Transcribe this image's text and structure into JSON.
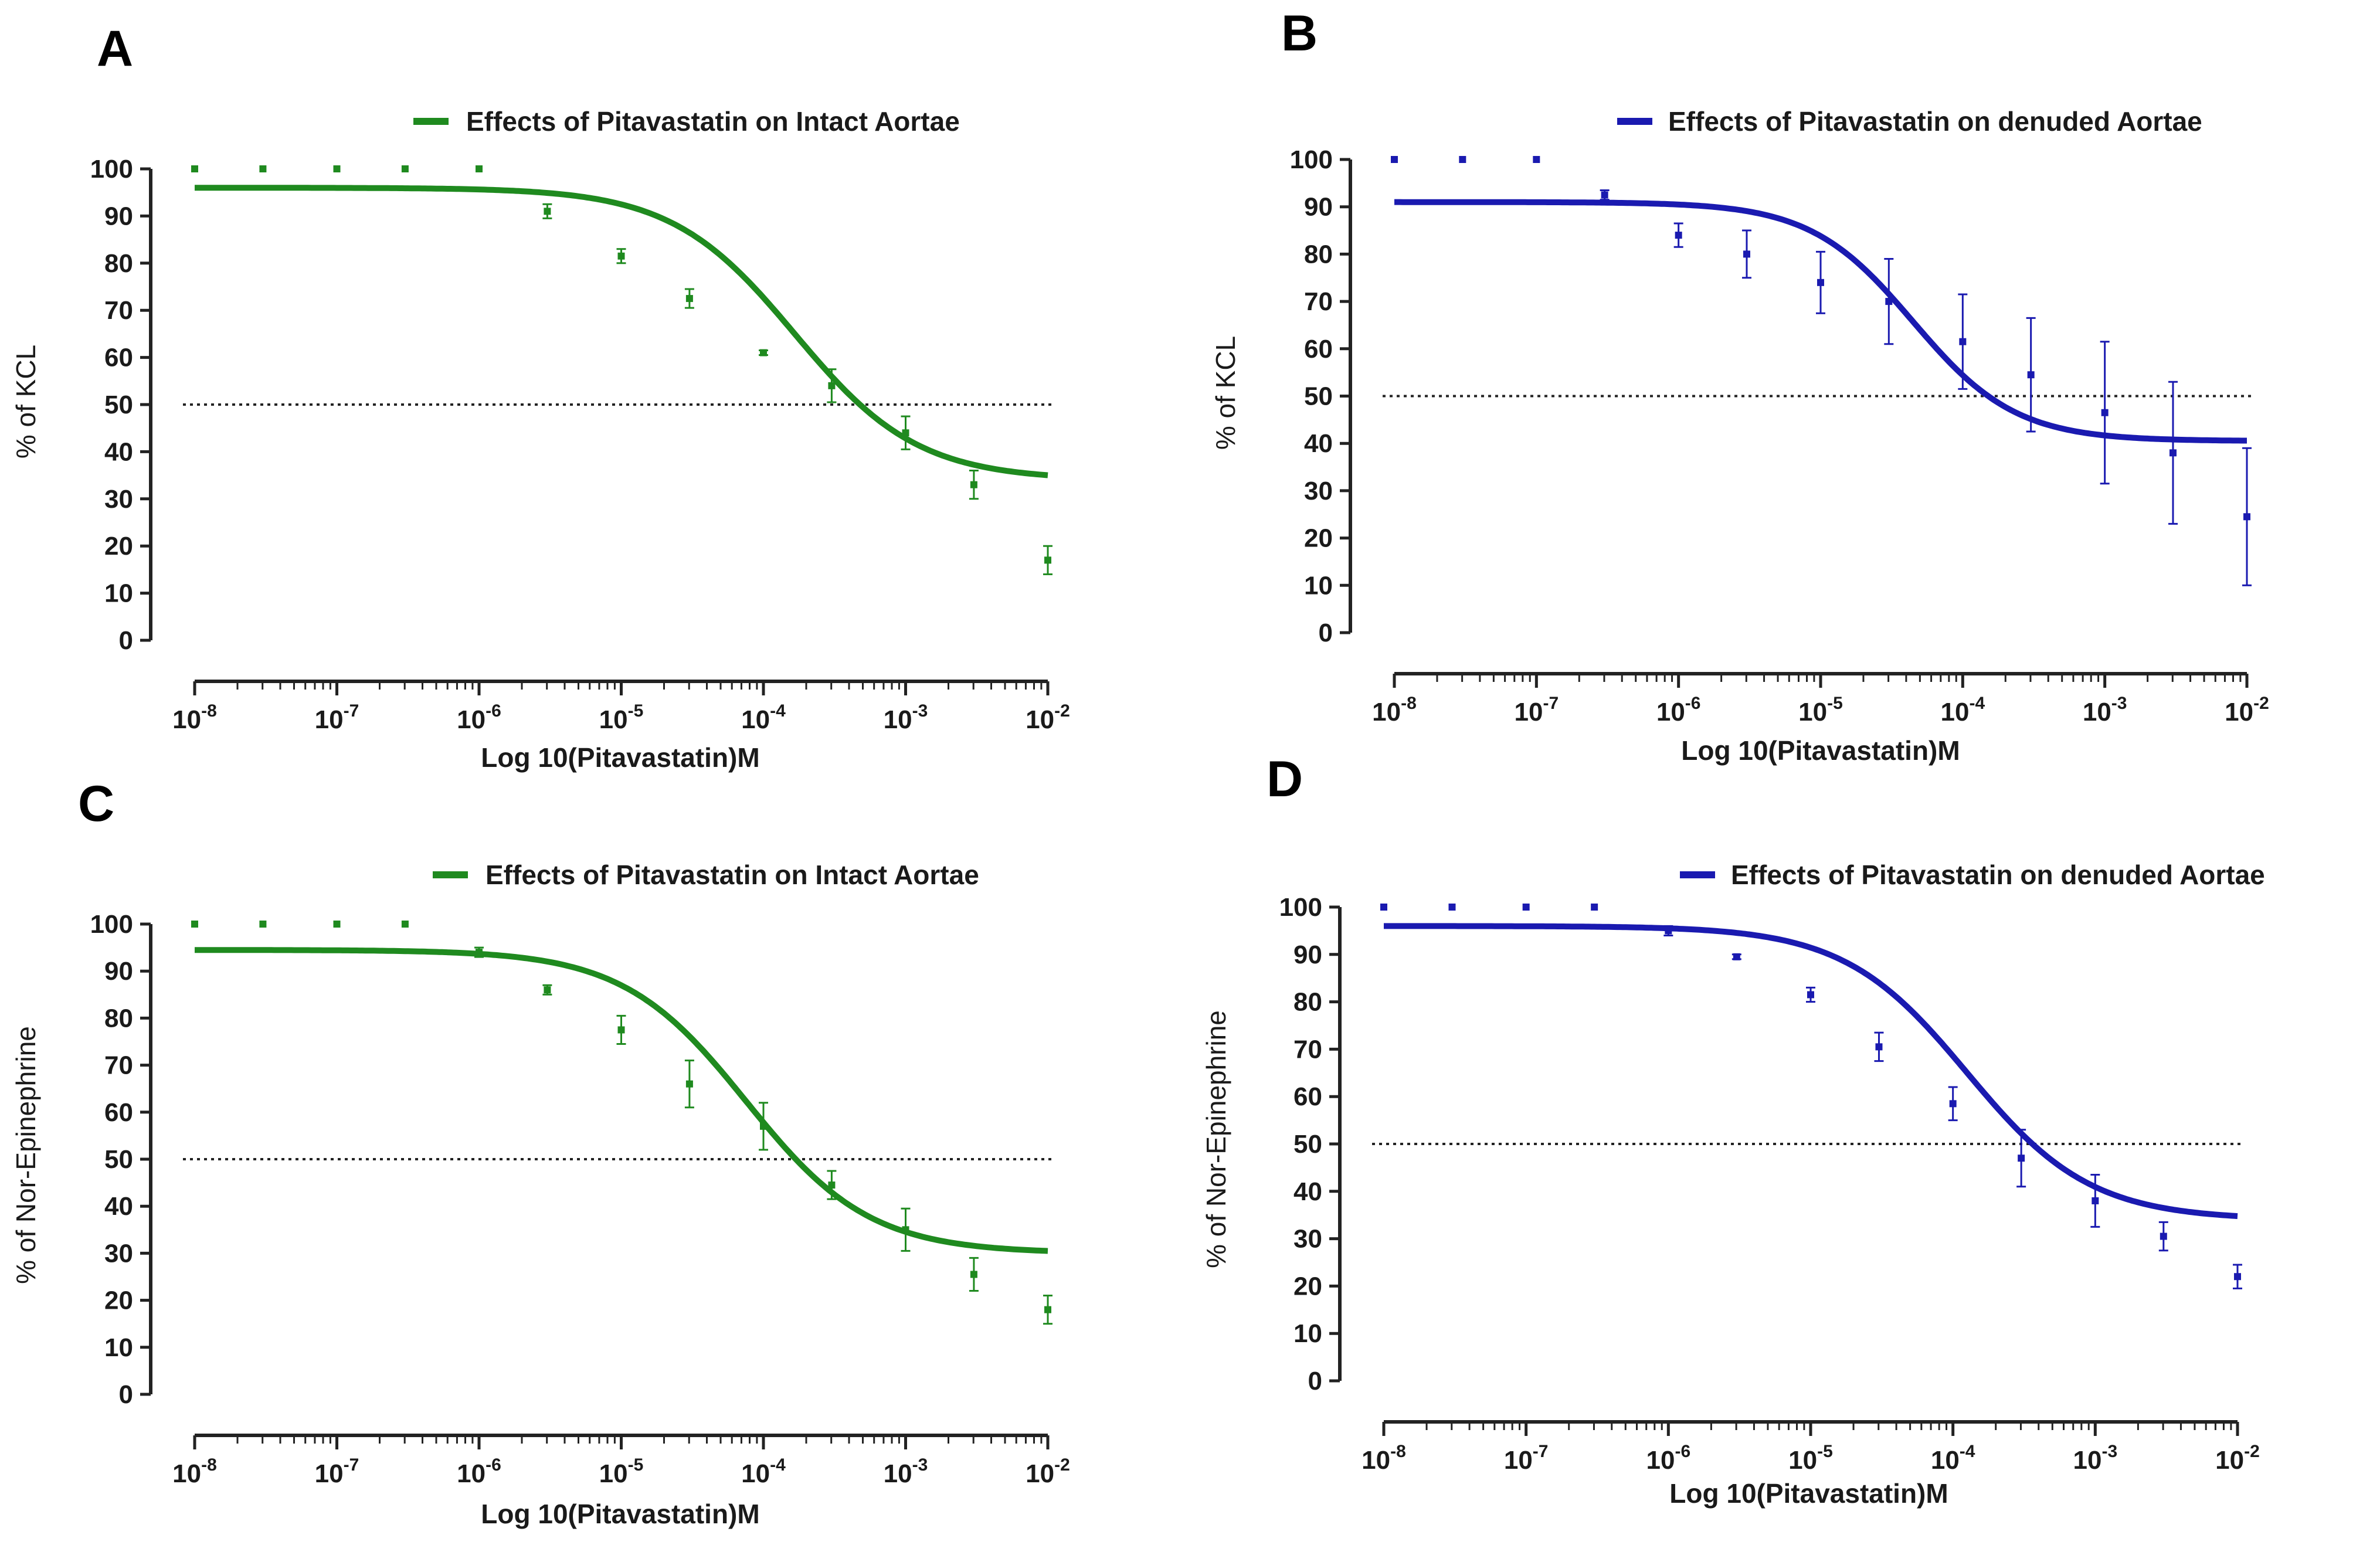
{
  "chart_data": [
    {
      "panel": "A",
      "type": "line",
      "legend": "Effects of Pitavastatin on Intact Aortae",
      "legend_position": "top-right",
      "xlabel": "Log 10(Pitavastatin)M",
      "ylabel": "% of KCL",
      "xscale": "log10",
      "xlim": [
        -8,
        -2
      ],
      "ylim": [
        0,
        100
      ],
      "yticks": [
        0,
        10,
        20,
        30,
        40,
        50,
        60,
        70,
        80,
        90,
        100
      ],
      "xtick_labels": [
        {
          "base": "10",
          "exp": "-8"
        },
        {
          "base": "10",
          "exp": "-7"
        },
        {
          "base": "10",
          "exp": "-6"
        },
        {
          "base": "10",
          "exp": "-5"
        },
        {
          "base": "10",
          "exp": "-4"
        },
        {
          "base": "10",
          "exp": "-3"
        },
        {
          "base": "10",
          "exp": "-2"
        }
      ],
      "reference_line_y": 50,
      "color": "#1f8a1f",
      "fit": {
        "top": 96,
        "bottom": 34,
        "log_ic50": -3.78,
        "hill": 1.0
      },
      "points": {
        "log_x": [
          -8,
          -7.52,
          -7,
          -6.52,
          -6,
          -5.52,
          -5,
          -4.52,
          -4,
          -3.52,
          -3,
          -2.52,
          -2
        ],
        "y": [
          100,
          100,
          100,
          100,
          100,
          91,
          81.5,
          72.5,
          61,
          54,
          44,
          33,
          17
        ],
        "err": [
          0,
          0,
          0,
          0,
          0,
          1.5,
          1.5,
          2,
          0.5,
          3.5,
          3.5,
          3,
          3
        ]
      }
    },
    {
      "panel": "B",
      "type": "line",
      "legend": "Effects of Pitavastatin on denuded Aortae",
      "legend_position": "top-right",
      "xlabel": "Log 10(Pitavastatin)M",
      "ylabel": "% of KCL",
      "xscale": "log10",
      "xlim": [
        -8,
        -2
      ],
      "ylim": [
        0,
        100
      ],
      "yticks": [
        0,
        10,
        20,
        30,
        40,
        50,
        60,
        70,
        80,
        90,
        100
      ],
      "xtick_labels": [
        {
          "base": "10",
          "exp": "-8"
        },
        {
          "base": "10",
          "exp": "-7"
        },
        {
          "base": "10",
          "exp": "-6"
        },
        {
          "base": "10",
          "exp": "-5"
        },
        {
          "base": "10",
          "exp": "-4"
        },
        {
          "base": "10",
          "exp": "-3"
        },
        {
          "base": "10",
          "exp": "-2"
        }
      ],
      "reference_line_y": 50,
      "color": "#1a1ab0",
      "fit": {
        "top": 91,
        "bottom": 40.5,
        "log_ic50": -4.35,
        "hill": 1.2
      },
      "points": {
        "log_x": [
          -8,
          -7.52,
          -7,
          -6.52,
          -6,
          -5.52,
          -5,
          -4.52,
          -4,
          -3.52,
          -3,
          -2.52,
          -2
        ],
        "y": [
          100,
          100,
          100,
          92.5,
          84,
          80,
          74,
          70,
          61.5,
          54.5,
          46.5,
          38,
          24.5
        ],
        "err": [
          0,
          0,
          0,
          1,
          2.5,
          5,
          6.5,
          9,
          10,
          12,
          15,
          15,
          14.5
        ]
      }
    },
    {
      "panel": "C",
      "type": "line",
      "legend": "Effects of Pitavastatin on Intact Aortae",
      "legend_position": "top-right",
      "xlabel": "Log 10(Pitavastatin)M",
      "ylabel": "% of Nor-Epinephrine",
      "xscale": "log10",
      "xlim": [
        -8,
        -2
      ],
      "ylim": [
        0,
        100
      ],
      "yticks": [
        0,
        10,
        20,
        30,
        40,
        50,
        60,
        70,
        80,
        90,
        100
      ],
      "xtick_labels": [
        {
          "base": "10",
          "exp": "-8"
        },
        {
          "base": "10",
          "exp": "-7"
        },
        {
          "base": "10",
          "exp": "-6"
        },
        {
          "base": "10",
          "exp": "-5"
        },
        {
          "base": "10",
          "exp": "-4"
        },
        {
          "base": "10",
          "exp": "-3"
        },
        {
          "base": "10",
          "exp": "-2"
        }
      ],
      "reference_line_y": 50,
      "color": "#1f8a1f",
      "fit": {
        "top": 94.5,
        "bottom": 30,
        "log_ic50": -4.12,
        "hill": 1.0
      },
      "points": {
        "log_x": [
          -8,
          -7.52,
          -7,
          -6.52,
          -6,
          -5.52,
          -5,
          -4.52,
          -4,
          -3.52,
          -3,
          -2.52,
          -2
        ],
        "y": [
          100,
          100,
          100,
          100,
          94,
          86,
          77.5,
          66,
          57,
          44.5,
          35,
          25.5,
          18
        ],
        "err": [
          0,
          0,
          0,
          0,
          1,
          1,
          3,
          5,
          5,
          3,
          4.5,
          3.5,
          3
        ]
      }
    },
    {
      "panel": "D",
      "type": "line",
      "legend": "Effects of Pitavastatin on denuded Aortae",
      "legend_position": "top-right",
      "xlabel": "Log 10(Pitavastatin)M",
      "ylabel": "% of Nor-Epinephrine",
      "xscale": "log10",
      "xlim": [
        -8,
        -2
      ],
      "ylim": [
        0,
        100
      ],
      "yticks": [
        0,
        10,
        20,
        30,
        40,
        50,
        60,
        70,
        80,
        90,
        100
      ],
      "xtick_labels": [
        {
          "base": "10",
          "exp": "-8"
        },
        {
          "base": "10",
          "exp": "-7"
        },
        {
          "base": "10",
          "exp": "-6"
        },
        {
          "base": "10",
          "exp": "-5"
        },
        {
          "base": "10",
          "exp": "-4"
        },
        {
          "base": "10",
          "exp": "-3"
        },
        {
          "base": "10",
          "exp": "-2"
        }
      ],
      "reference_line_y": 50,
      "color": "#1a1ab0",
      "fit": {
        "top": 96,
        "bottom": 34,
        "log_ic50": -3.9,
        "hill": 1.0
      },
      "points": {
        "log_x": [
          -8,
          -7.52,
          -7,
          -6.52,
          -6,
          -5.52,
          -5,
          -4.52,
          -4,
          -3.52,
          -3,
          -2.52,
          -2
        ],
        "y": [
          100,
          100,
          100,
          100,
          95,
          89.5,
          81.5,
          70.5,
          58.5,
          47,
          38,
          30.5,
          22
        ],
        "err": [
          0,
          0,
          0,
          0,
          1,
          0.5,
          1.5,
          3,
          3.5,
          6,
          5.5,
          3,
          2.5
        ]
      }
    }
  ]
}
